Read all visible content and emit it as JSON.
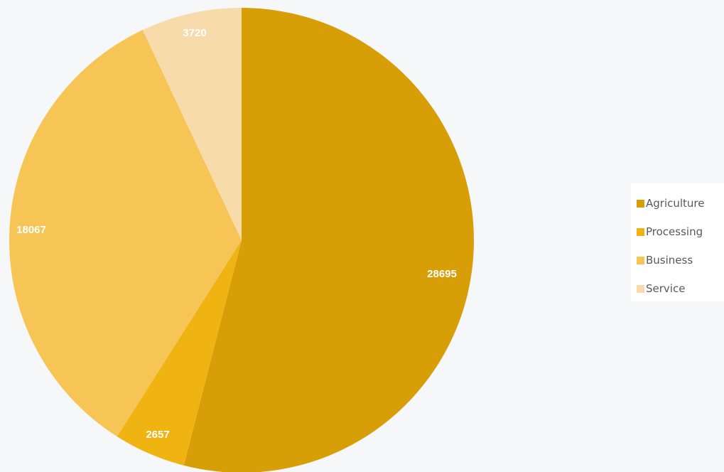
{
  "chart_data": {
    "type": "pie",
    "categories": [
      "Agriculture",
      "Processing",
      "Business",
      "Service"
    ],
    "values": [
      28695,
      2657,
      18067,
      3720
    ],
    "colors": [
      "#d89e07",
      "#f0b412",
      "#f6c556",
      "#f8dbab"
    ],
    "data_labels": [
      "28695",
      "2657",
      "18067",
      "3720"
    ],
    "legend_position": "right",
    "start_angle": "top, clockwise",
    "title": ""
  }
}
